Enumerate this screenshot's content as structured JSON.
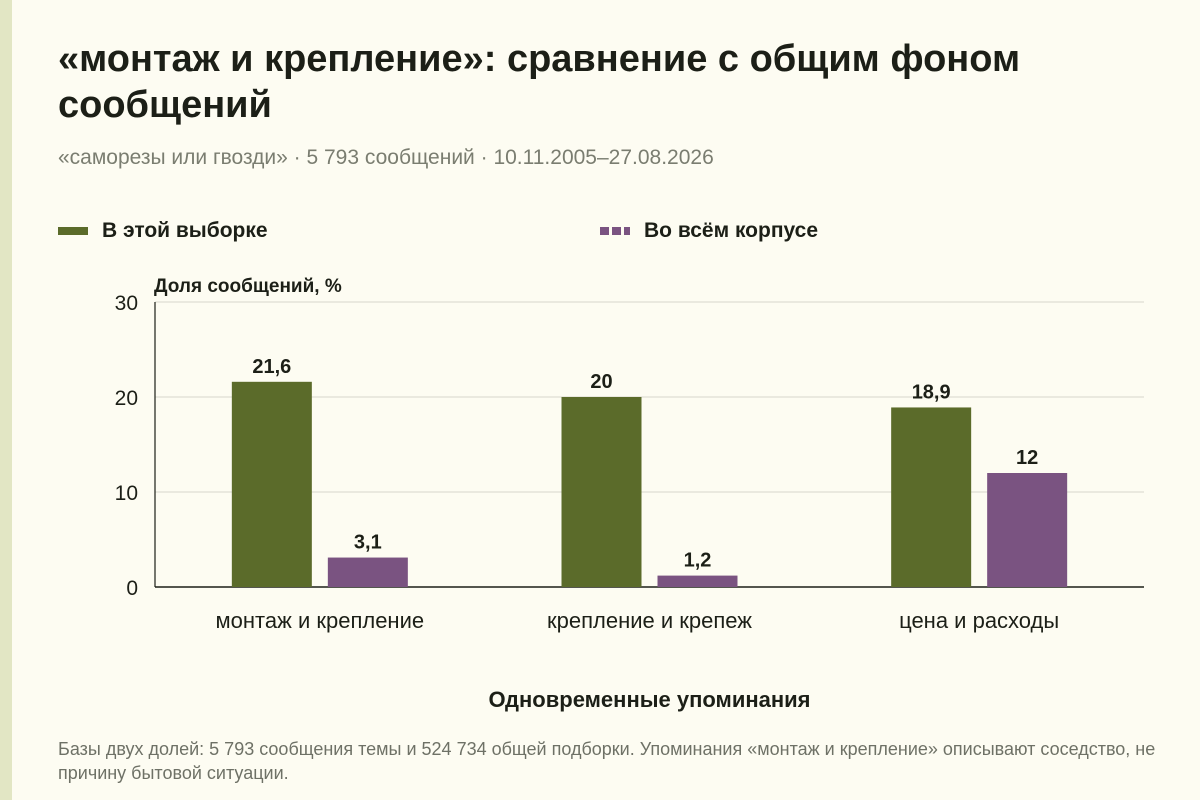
{
  "header": {
    "title": "«монтаж и крепление»: сравнение с общим фоном сообщений",
    "subtitle": "«саморезы или гвозди» · 5 793 сообщений · 10.11.2005–27.08.2026"
  },
  "legend": {
    "sample": "В этой выборке",
    "corpus": "Во всём корпусе"
  },
  "footnote": "Базы двух долей: 5 793 сообщения темы и 524 734 общей подборки. Упоминания «монтаж и крепление» описывают соседство, не причину бытовой ситуации.",
  "colors": {
    "sample": "#5b6b2a",
    "corpus": "#7a5381"
  },
  "chart_data": {
    "type": "bar",
    "ylabel": "Доля сообщений, %",
    "xlabel": "Одновременные упоминания",
    "ylim": [
      0,
      30
    ],
    "yticks": [
      0,
      10,
      20,
      30
    ],
    "grid": true,
    "legend_position": "top",
    "categories": [
      "монтаж и крепление",
      "крепление и крепеж",
      "цена и расходы"
    ],
    "series": [
      {
        "name": "В этой выборке",
        "values": [
          21.6,
          20,
          18.9
        ],
        "labels": [
          "21,6",
          "20",
          "18,9"
        ]
      },
      {
        "name": "Во всём корпусе",
        "values": [
          3.1,
          1.2,
          12
        ],
        "labels": [
          "3,1",
          "1,2",
          "12"
        ]
      }
    ]
  }
}
